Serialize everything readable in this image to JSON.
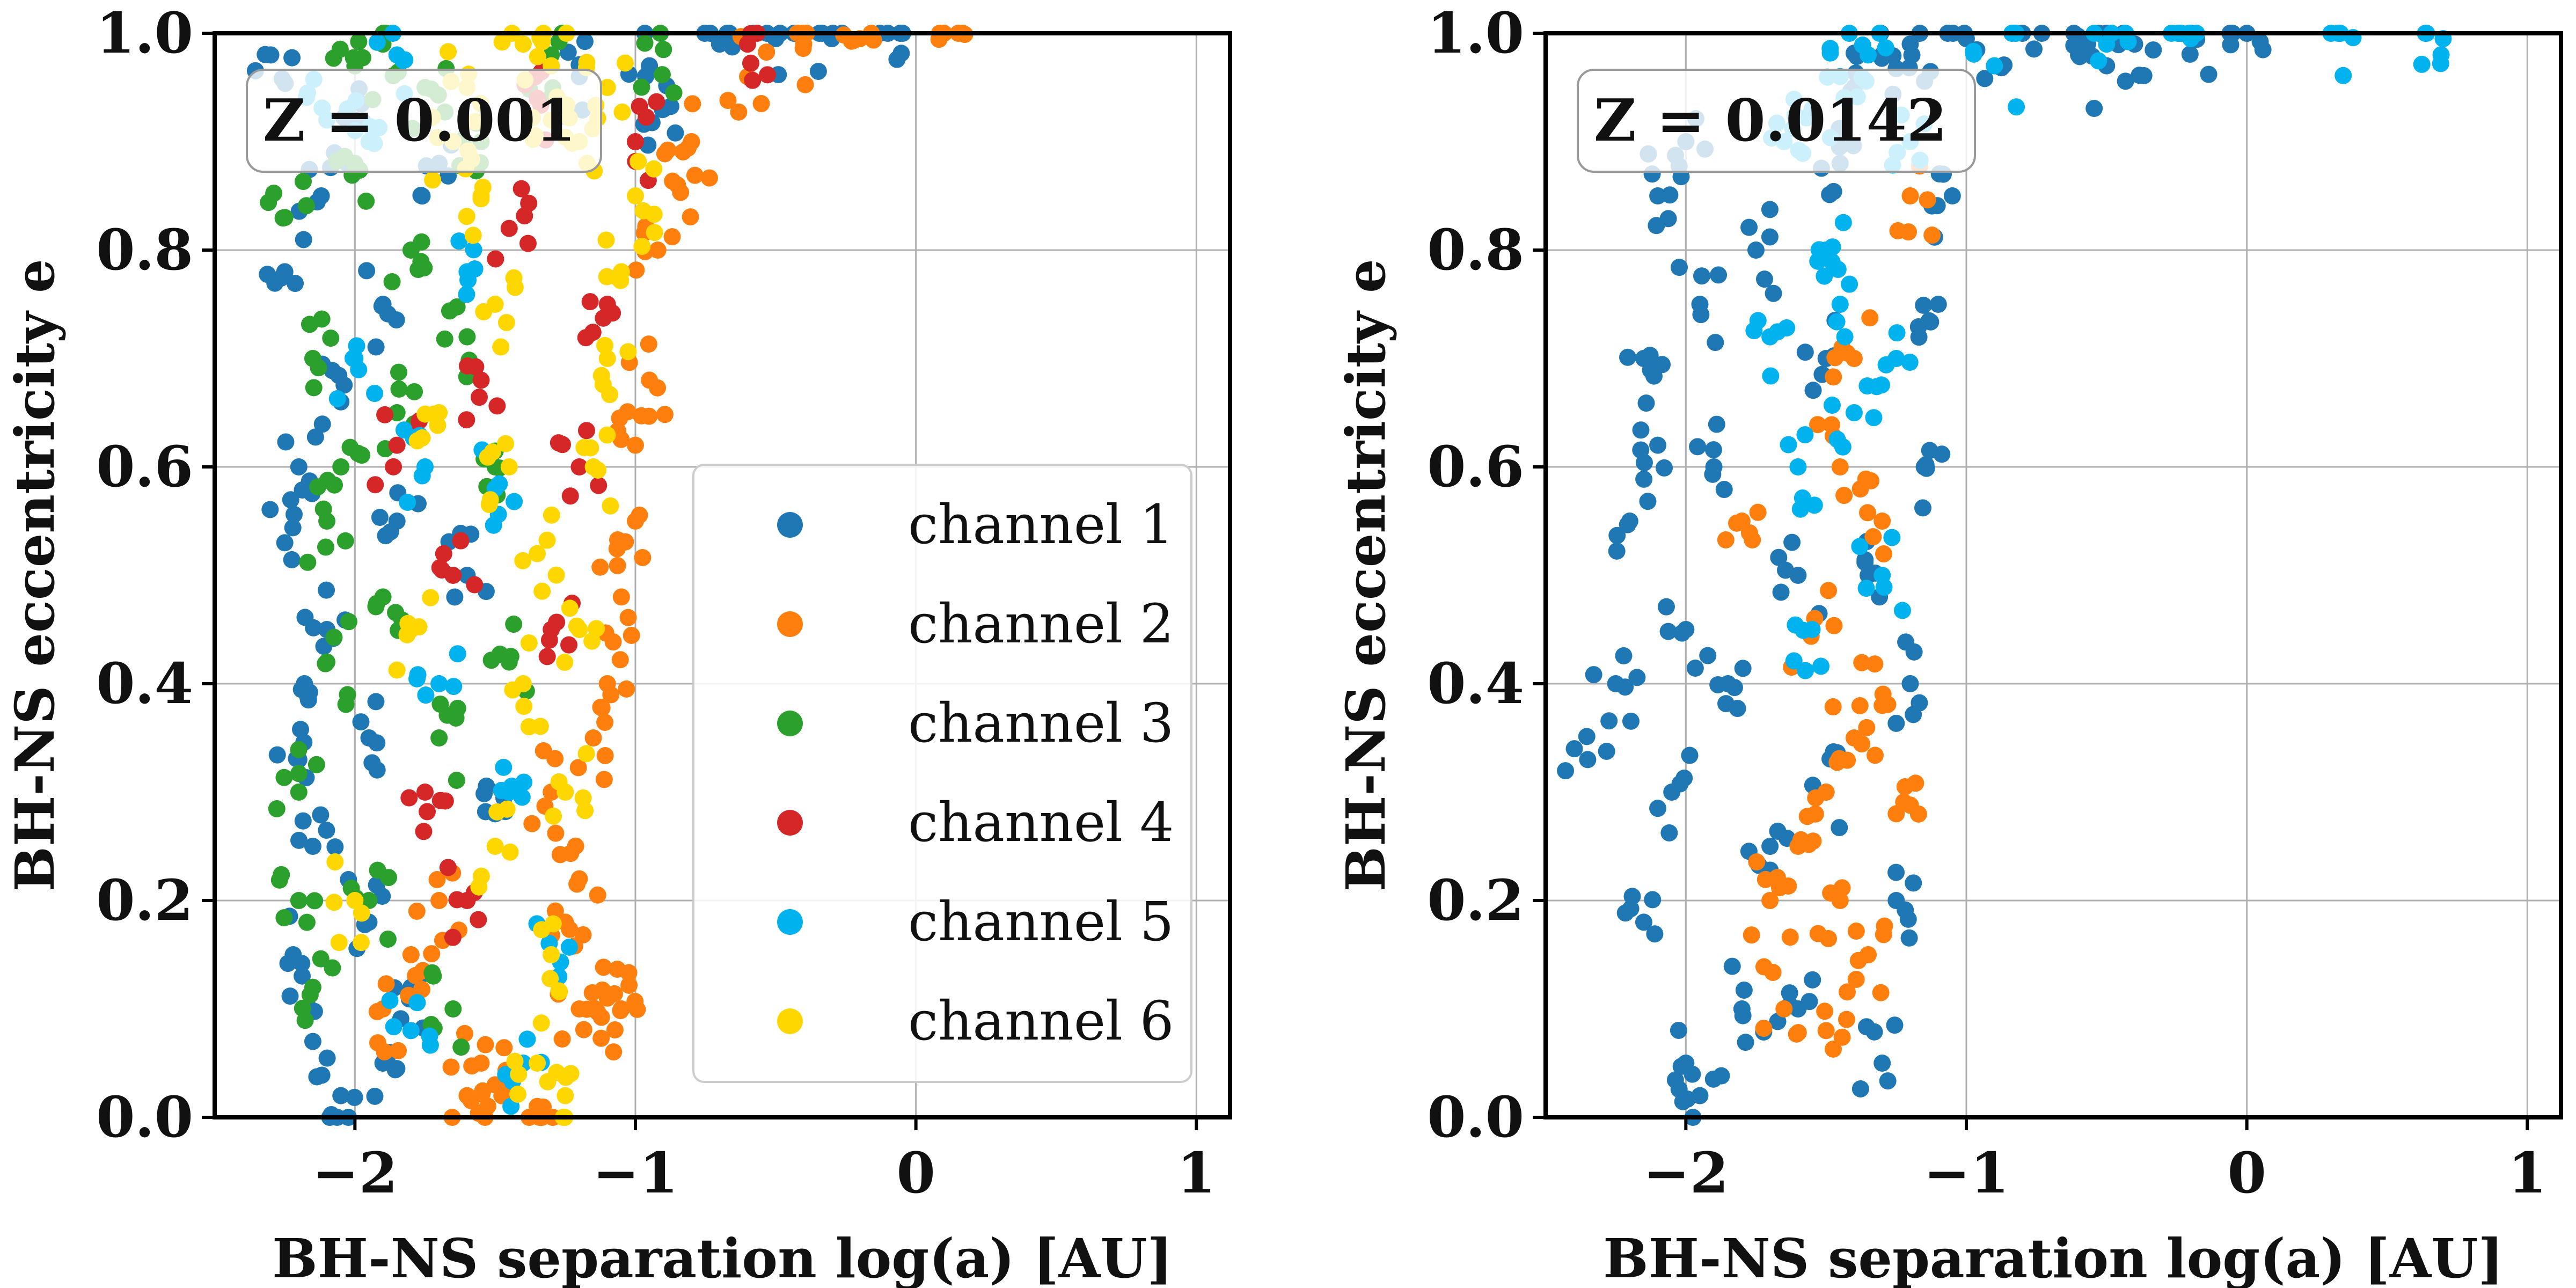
{
  "chart_data": [
    {
      "type": "scatter",
      "annotation": "Z = 0.001",
      "xlabel": "BH-NS separation log(a) [AU]",
      "ylabel": "BH-NS eccentricity e",
      "xlim": [
        -2.5,
        1.12
      ],
      "ylim": [
        0.0,
        1.0
      ],
      "xticks": [
        -2,
        -1,
        0,
        1
      ],
      "xtick_labels": [
        "−2",
        "−1",
        "0",
        "1"
      ],
      "yticks": [
        0.0,
        0.2,
        0.4,
        0.6,
        0.8,
        1.0
      ],
      "ytick_labels": [
        "0.0",
        "0.2",
        "0.4",
        "0.6",
        "0.8",
        "1.0"
      ],
      "grid": true,
      "legend": "center-right",
      "series": [
        {
          "name": "channel 1",
          "color": "#1f77b4",
          "values": [
            [
              -2.25,
              0.53
            ],
            [
              -2.2,
              0.6
            ],
            [
              -2.25,
              0.78
            ],
            [
              -2.3,
              0.98
            ],
            [
              -2.15,
              0.07
            ],
            [
              -2.22,
              0.15
            ],
            [
              -2.05,
              0.02
            ],
            [
              -2.2,
              0.33
            ],
            [
              -2.1,
              0.45
            ],
            [
              -2.15,
              0.25
            ],
            [
              -2.05,
              0.66
            ],
            [
              -2.12,
              0.85
            ],
            [
              -2.0,
              0.92
            ],
            [
              -1.95,
              0.35
            ],
            [
              -1.85,
              0.55
            ],
            [
              -1.9,
              0.75
            ],
            [
              -1.7,
              0.88
            ],
            [
              -1.6,
              0.5
            ],
            [
              -1.5,
              0.28
            ],
            [
              -1.8,
              0.12
            ],
            [
              -2.18,
              0.4
            ],
            [
              -0.95,
              0.97
            ],
            [
              -0.7,
              0.99
            ],
            [
              -0.5,
              0.995
            ],
            [
              -0.3,
              0.995
            ],
            [
              -0.1,
              1.0
            ],
            [
              -0.9,
              0.93
            ],
            [
              -1.2,
              0.96
            ],
            [
              -1.9,
              0.05
            ],
            [
              -1.95,
              0.18
            ]
          ]
        },
        {
          "name": "channel 2",
          "color": "#ff7f0e",
          "values": [
            [
              -1.15,
              0.1
            ],
            [
              -1.05,
              0.1
            ],
            [
              -1.1,
              0.11
            ],
            [
              -1.2,
              0.1
            ],
            [
              -1.1,
              0.4
            ],
            [
              -1.05,
              0.48
            ],
            [
              -1.0,
              0.55
            ],
            [
              -0.95,
              0.68
            ],
            [
              -0.92,
              0.8
            ],
            [
              -0.8,
              0.9
            ],
            [
              -0.6,
              0.96
            ],
            [
              -0.4,
              0.99
            ],
            [
              -0.2,
              0.995
            ],
            [
              0.1,
              1.0
            ],
            [
              -1.55,
              0.05
            ],
            [
              -1.6,
              0.02
            ],
            [
              -1.5,
              0.03
            ],
            [
              -1.8,
              0.15
            ],
            [
              -1.7,
              0.2
            ],
            [
              -1.9,
              0.1
            ],
            [
              -1.3,
              0.3
            ],
            [
              -1.2,
              0.22
            ],
            [
              -1.35,
              0.01
            ],
            [
              -1.0,
              0.62
            ],
            [
              -0.85,
              0.86
            ],
            [
              -1.15,
              0.35
            ],
            [
              -1.25,
              0.18
            ]
          ]
        },
        {
          "name": "channel 3",
          "color": "#2ca02c",
          "values": [
            [
              -2.15,
              0.12
            ],
            [
              -2.2,
              0.3
            ],
            [
              -2.1,
              0.42
            ],
            [
              -2.05,
              0.6
            ],
            [
              -2.15,
              0.7
            ],
            [
              -2.25,
              0.83
            ],
            [
              -2.0,
              0.88
            ],
            [
              -1.95,
              0.2
            ],
            [
              -1.9,
              0.48
            ],
            [
              -1.85,
              0.65
            ],
            [
              -1.8,
              0.8
            ],
            [
              -1.75,
              0.95
            ],
            [
              -1.7,
              0.35
            ],
            [
              -1.6,
              0.72
            ],
            [
              -1.55,
              0.9
            ],
            [
              -1.5,
              0.6
            ],
            [
              -1.45,
              0.42
            ],
            [
              -1.65,
              0.1
            ],
            [
              -2.0,
              0.97
            ],
            [
              -1.9,
              0.99
            ],
            [
              -1.3,
              0.98
            ],
            [
              -0.9,
              0.985
            ],
            [
              -2.2,
              0.2
            ],
            [
              -2.1,
              0.55
            ]
          ]
        },
        {
          "name": "channel 4",
          "color": "#d62728",
          "values": [
            [
              -1.75,
              0.3
            ],
            [
              -1.65,
              0.5
            ],
            [
              -1.55,
              0.68
            ],
            [
              -1.45,
              0.82
            ],
            [
              -1.35,
              0.94
            ],
            [
              -1.2,
              0.6
            ],
            [
              -1.1,
              0.75
            ],
            [
              -1.6,
              0.2
            ],
            [
              -1.85,
              0.62
            ],
            [
              -1.0,
              0.9
            ],
            [
              -0.6,
              0.99
            ],
            [
              -1.3,
              0.45
            ]
          ]
        },
        {
          "name": "channel 5",
          "color": "#00b2ee",
          "values": [
            [
              -2.1,
              0.92
            ],
            [
              -2.0,
              0.7
            ],
            [
              -1.95,
              0.9
            ],
            [
              -1.85,
              0.98
            ],
            [
              -1.7,
              0.4
            ],
            [
              -1.6,
              0.78
            ],
            [
              -1.5,
              0.58
            ],
            [
              -1.45,
              0.3
            ],
            [
              -1.4,
              0.05
            ],
            [
              -1.8,
              0.08
            ],
            [
              -1.3,
              0.15
            ],
            [
              -1.75,
              0.6
            ]
          ]
        },
        {
          "name": "channel 6",
          "color": "#ffd700",
          "values": [
            [
              -1.35,
              0.05
            ],
            [
              -1.3,
              0.15
            ],
            [
              -1.25,
              0.3
            ],
            [
              -1.2,
              0.45
            ],
            [
              -1.15,
              0.6
            ],
            [
              -1.1,
              0.7
            ],
            [
              -1.05,
              0.78
            ],
            [
              -1.0,
              0.85
            ],
            [
              -1.3,
              0.92
            ],
            [
              -1.4,
              0.99
            ],
            [
              -1.45,
              0.6
            ],
            [
              -1.5,
              0.75
            ],
            [
              -1.55,
              0.85
            ],
            [
              -1.6,
              0.95
            ],
            [
              -1.4,
              0.4
            ],
            [
              -1.35,
              0.52
            ],
            [
              -1.25,
              0.02
            ],
            [
              -1.2,
              0.9
            ],
            [
              -1.65,
              0.9
            ],
            [
              -1.1,
              0.95
            ],
            [
              -2.0,
              0.2
            ],
            [
              -1.8,
              0.45
            ],
            [
              -1.7,
              0.65
            ],
            [
              -1.3,
              0.97
            ],
            [
              -1.5,
              0.25
            ]
          ]
        }
      ]
    },
    {
      "type": "scatter",
      "annotation": "Z = 0.0142",
      "xlabel": "BH-NS separation log(a) [AU]",
      "ylabel": "BH-NS eccentricity e",
      "xlim": [
        -2.5,
        1.12
      ],
      "ylim": [
        0.0,
        1.0
      ],
      "xticks": [
        -2,
        -1,
        0,
        1
      ],
      "xtick_labels": [
        "−2",
        "−1",
        "0",
        "1"
      ],
      "yticks": [
        0.0,
        0.2,
        0.4,
        0.6,
        0.8,
        1.0
      ],
      "ytick_labels": [
        "0.0",
        "0.2",
        "0.4",
        "0.6",
        "0.8",
        "1.0"
      ],
      "grid": true,
      "series": [
        {
          "name": "channel 1",
          "color": "#1f77b4",
          "values": [
            [
              -2.35,
              0.33
            ],
            [
              -2.25,
              0.4
            ],
            [
              -2.2,
              0.55
            ],
            [
              -2.15,
              0.7
            ],
            [
              -2.1,
              0.85
            ],
            [
              -2.0,
              0.9
            ],
            [
              -1.95,
              0.75
            ],
            [
              -1.9,
              0.6
            ],
            [
              -2.0,
              0.45
            ],
            [
              -2.05,
              0.3
            ],
            [
              -2.15,
              0.18
            ],
            [
              -2.0,
              0.05
            ],
            [
              -1.95,
              0.02
            ],
            [
              -1.8,
              0.1
            ],
            [
              -1.7,
              0.25
            ],
            [
              -1.6,
              0.5
            ],
            [
              -1.5,
              0.7
            ],
            [
              -1.45,
              0.88
            ],
            [
              -1.4,
              0.95
            ],
            [
              -1.3,
              0.98
            ],
            [
              -1.2,
              0.99
            ],
            [
              -1.0,
              0.995
            ],
            [
              -0.8,
              1.0
            ],
            [
              -0.6,
              0.98
            ],
            [
              -0.5,
              0.97
            ],
            [
              -0.4,
              0.99
            ],
            [
              -0.2,
              1.0
            ],
            [
              0.0,
              1.0
            ],
            [
              -1.3,
              0.05
            ],
            [
              -1.25,
              0.2
            ],
            [
              -1.2,
              0.4
            ],
            [
              -1.15,
              0.6
            ],
            [
              -1.1,
              0.75
            ],
            [
              -1.05,
              0.85
            ],
            [
              -1.6,
              0.1
            ],
            [
              -1.5,
              0.3
            ],
            [
              -1.85,
              0.4
            ],
            [
              -1.75,
              0.8
            ],
            [
              -2.1,
              0.62
            ],
            [
              -1.35,
              0.5
            ]
          ]
        },
        {
          "name": "channel 2",
          "color": "#ff7f0e",
          "values": [
            [
              -1.7,
              0.2
            ],
            [
              -1.6,
              0.25
            ],
            [
              -1.5,
              0.3
            ],
            [
              -1.4,
              0.35
            ],
            [
              -1.35,
              0.15
            ],
            [
              -1.25,
              0.28
            ],
            [
              -1.55,
              0.45
            ],
            [
              -1.45,
              0.6
            ],
            [
              -1.4,
              0.7
            ],
            [
              -1.3,
              0.38
            ],
            [
              -1.65,
              0.1
            ],
            [
              -1.5,
              0.08
            ],
            [
              -1.2,
              0.85
            ],
            [
              -1.8,
              0.55
            ],
            [
              -1.45,
              0.2
            ],
            [
              -1.3,
              0.55
            ]
          ]
        },
        {
          "name": "channel 5",
          "color": "#00b2ee",
          "values": [
            [
              -1.65,
              0.9
            ],
            [
              -1.55,
              0.93
            ],
            [
              -1.45,
              0.96
            ],
            [
              -1.35,
              0.98
            ],
            [
              -1.5,
              0.8
            ],
            [
              -1.4,
              0.65
            ],
            [
              -1.3,
              0.5
            ],
            [
              -1.6,
              0.6
            ],
            [
              -1.2,
              0.9
            ],
            [
              -0.9,
              0.97
            ],
            [
              -0.5,
              0.99
            ],
            [
              -0.2,
              0.995
            ],
            [
              0.3,
              1.0
            ],
            [
              0.7,
              0.995
            ],
            [
              -1.55,
              0.45
            ],
            [
              -1.45,
              0.75
            ],
            [
              -1.7,
              0.72
            ],
            [
              -1.25,
              0.7
            ]
          ]
        }
      ]
    }
  ]
}
